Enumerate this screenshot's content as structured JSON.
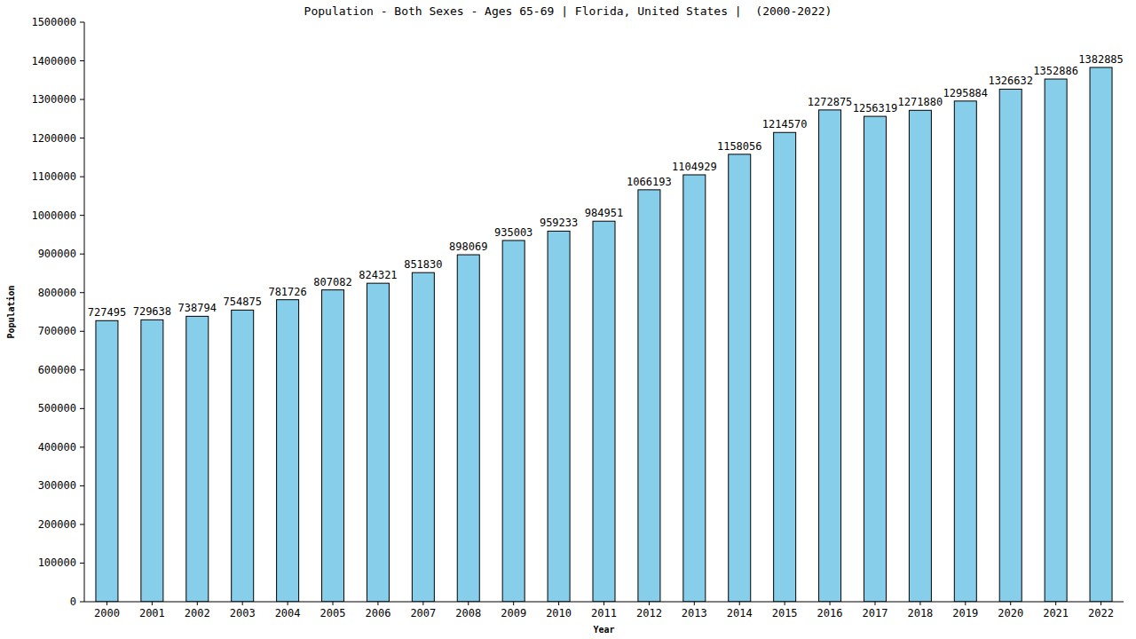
{
  "chart_data": {
    "type": "bar",
    "title": "Population - Both Sexes - Ages 65-69 | Florida, United States |  (2000-2022)",
    "x_label": "Year",
    "y_label": "Population",
    "categories": [
      "2000",
      "2001",
      "2002",
      "2003",
      "2004",
      "2005",
      "2006",
      "2007",
      "2008",
      "2009",
      "2010",
      "2011",
      "2012",
      "2013",
      "2014",
      "2015",
      "2016",
      "2017",
      "2018",
      "2019",
      "2020",
      "2021",
      "2022"
    ],
    "values": [
      727495,
      729638,
      738794,
      754875,
      781726,
      807082,
      824321,
      851830,
      898069,
      935003,
      959233,
      984951,
      1066193,
      1104929,
      1158056,
      1214570,
      1272875,
      1256319,
      1271880,
      1295884,
      1326632,
      1352886,
      1382885
    ],
    "color": "#87ceeb",
    "ylim": [
      0,
      1500000
    ],
    "yticks": [
      0,
      100000,
      200000,
      300000,
      400000,
      500000,
      600000,
      700000,
      800000,
      900000,
      1000000,
      1100000,
      1200000,
      1300000,
      1400000,
      1500000
    ],
    "grid": false,
    "data_labels": true
  }
}
